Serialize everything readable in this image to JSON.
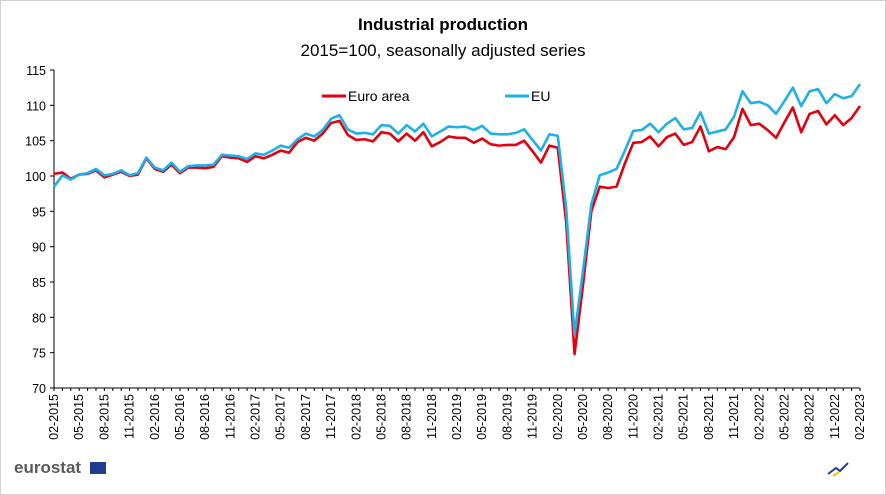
{
  "chart_data": {
    "type": "line",
    "title": "Industrial production",
    "subtitle": "2015=100, seasonally adjusted series",
    "source": "eurostat",
    "categories": [
      "02-2015",
      null,
      null,
      "05-2015",
      null,
      null,
      "08-2015",
      null,
      null,
      "11-2015",
      null,
      null,
      "02-2016",
      null,
      null,
      "05-2016",
      null,
      null,
      "08-2016",
      null,
      null,
      "11-2016",
      null,
      null,
      "02-2017",
      null,
      null,
      "05-2017",
      null,
      null,
      "08-2017",
      null,
      null,
      "11-2017",
      null,
      null,
      "02-2018",
      null,
      null,
      "05-2018",
      null,
      null,
      "08-2018",
      null,
      null,
      "11-2018",
      null,
      null,
      "02-2019",
      null,
      null,
      "05-2019",
      null,
      null,
      "08-2019",
      null,
      null,
      "11-2019",
      null,
      null,
      "02-2020",
      null,
      null,
      "05-2020",
      null,
      null,
      "08-2020",
      null,
      null,
      "11-2020",
      null,
      null,
      "02-2021",
      null,
      null,
      "05-2021",
      null,
      null,
      "08-2021",
      null,
      null,
      "11-2021",
      null,
      null,
      "02-2022",
      null,
      null,
      "05-2022",
      null,
      null,
      "08-2022",
      null,
      null,
      "11-2022",
      null,
      null,
      "02-2023"
    ],
    "series": [
      {
        "name": "Euro area",
        "color": "#e3000f",
        "values": [
          100.3,
          100.5,
          99.6,
          100.2,
          100.3,
          100.8,
          99.8,
          100.2,
          100.6,
          100.0,
          100.2,
          102.5,
          101.0,
          100.6,
          101.6,
          100.4,
          101.2,
          101.2,
          101.1,
          101.3,
          102.8,
          102.6,
          102.5,
          102.0,
          102.8,
          102.5,
          103.0,
          103.6,
          103.3,
          104.8,
          105.4,
          105.0,
          106.0,
          107.5,
          107.8,
          105.8,
          105.1,
          105.2,
          104.9,
          106.2,
          106.0,
          104.9,
          106.0,
          105.0,
          106.2,
          104.2,
          104.8,
          105.6,
          105.4,
          105.4,
          104.7,
          105.3,
          104.5,
          104.3,
          104.4,
          104.4,
          105.0,
          103.5,
          101.9,
          104.3,
          104.0,
          93.5,
          74.8,
          84.5,
          95.0,
          98.5,
          98.3,
          98.5,
          101.8,
          104.7,
          104.8,
          105.6,
          104.2,
          105.5,
          106.0,
          104.4,
          104.8,
          107.0,
          103.5,
          104.1,
          103.8,
          105.5,
          109.5,
          107.2,
          107.4,
          106.5,
          105.4,
          107.6,
          109.7,
          106.2,
          108.8,
          109.2,
          107.3,
          108.6,
          107.2,
          108.2,
          109.9
        ]
      },
      {
        "name": "EU",
        "color": "#1fb1e6",
        "values": [
          98.5,
          100.1,
          99.5,
          100.2,
          100.4,
          101.0,
          100.1,
          100.3,
          100.8,
          100.1,
          100.4,
          102.6,
          101.2,
          100.8,
          101.9,
          100.6,
          101.4,
          101.5,
          101.5,
          101.6,
          103.0,
          102.9,
          102.8,
          102.4,
          103.2,
          103.0,
          103.6,
          104.3,
          104.0,
          105.2,
          106.0,
          105.6,
          106.5,
          108.1,
          108.6,
          106.6,
          106.0,
          106.1,
          105.9,
          107.2,
          107.1,
          106.0,
          107.2,
          106.3,
          107.4,
          105.6,
          106.3,
          107.0,
          106.9,
          107.0,
          106.5,
          107.1,
          106.0,
          105.9,
          105.9,
          106.1,
          106.6,
          105.1,
          103.6,
          105.9,
          105.7,
          95.5,
          77.5,
          86.5,
          96.0,
          100.1,
          100.5,
          101.0,
          103.6,
          106.4,
          106.5,
          107.4,
          106.2,
          107.4,
          108.2,
          106.6,
          106.8,
          109.0,
          106.0,
          106.3,
          106.6,
          108.4,
          112.0,
          110.3,
          110.5,
          110.0,
          108.8,
          110.6,
          112.5,
          109.9,
          112.0,
          112.3,
          110.3,
          111.6,
          111.0,
          111.3,
          113.0
        ]
      }
    ],
    "ylim": [
      70,
      115
    ],
    "yticks": [
      70,
      75,
      80,
      85,
      90,
      95,
      100,
      105,
      110,
      115
    ]
  }
}
